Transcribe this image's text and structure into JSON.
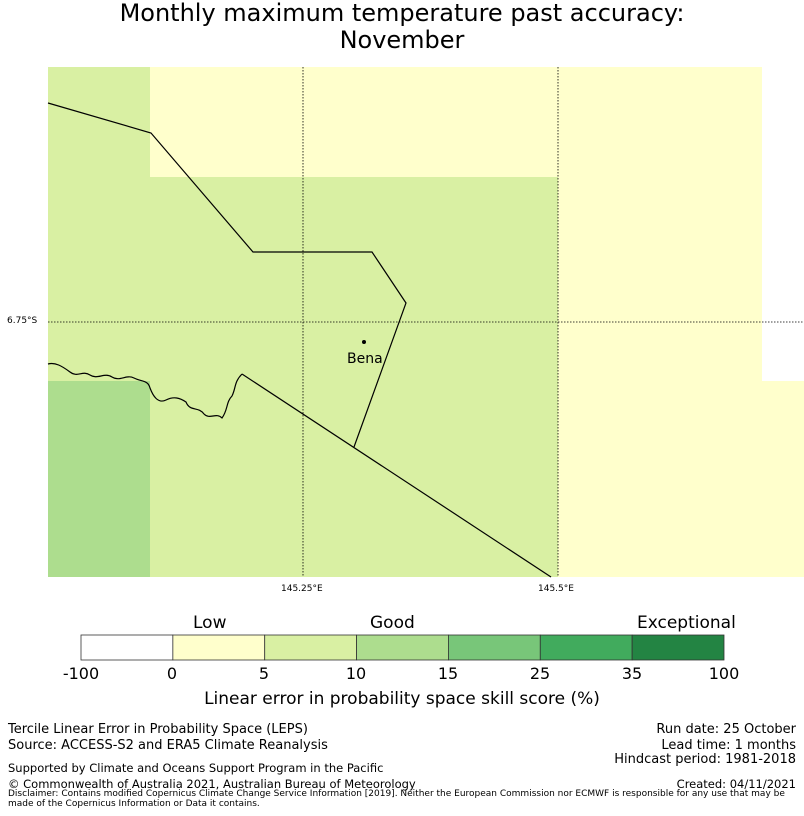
{
  "title": {
    "line1": "Monthly maximum temperature past accuracy:",
    "line2": "November"
  },
  "map": {
    "place": "Bena",
    "lon_labels": [
      "145.25°E",
      "145.5°E"
    ],
    "lat_labels": [
      "6.75°S"
    ]
  },
  "colorbar": {
    "categories": [
      "Low",
      "Good",
      "Exceptional"
    ],
    "ticks": [
      "-100",
      "0",
      "5",
      "10",
      "15",
      "25",
      "35",
      "100"
    ],
    "colors": [
      "#ffffff",
      "#ffffcc",
      "#d9f0a3",
      "#addd8e",
      "#78c679",
      "#41ab5d",
      "#238443"
    ],
    "title": "Linear error in probability space skill score (%)"
  },
  "footer": {
    "left1": "Tercile Linear Error in Probability Space (LEPS)",
    "left2": "Source: ACCESS-S2 and ERA5 Climate Reanalysis",
    "left3": "Supported by Climate and Oceans Support Program in the Pacific",
    "left4": "© Commonwealth of Australia 2021, Australian Bureau of Meteorology",
    "right1": "Run date: 25 October",
    "right2": "Lead time: 1 months",
    "right3": "Hindcast period: 1981-2018",
    "right4": "Created: 04/11/2021",
    "disclaimer": "Disclaimer: Contains modified Copernicus Climate Change Service Information [2019]. Neither the European Commission nor ECMWF is responsible for any use that may be made of the Copernicus Information or Data it contains."
  }
}
